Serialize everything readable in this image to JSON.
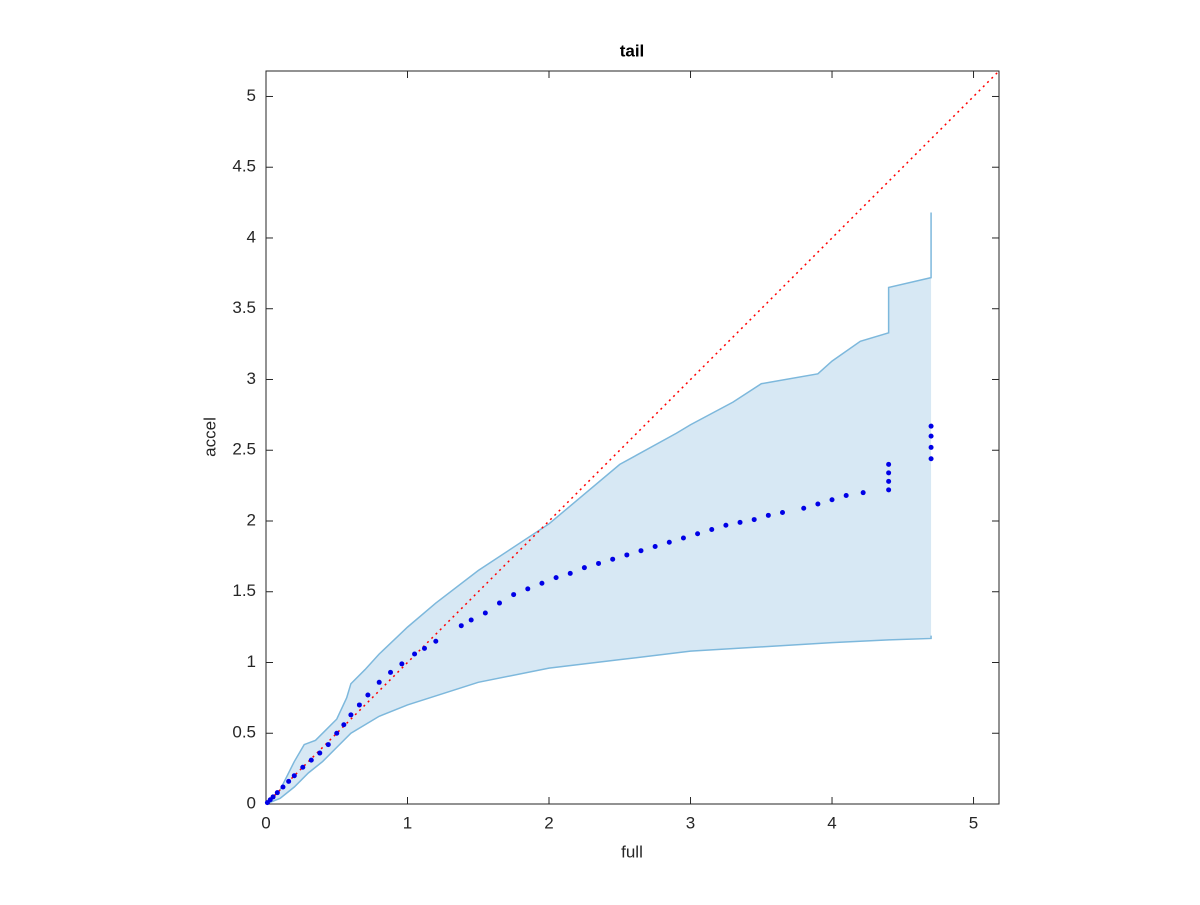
{
  "chart_data": {
    "type": "scatter",
    "title": "tail",
    "xlabel": "full",
    "ylabel": "accel",
    "xlim": [
      0,
      5.18
    ],
    "ylim": [
      0,
      5.18
    ],
    "xticks": [
      0,
      1,
      2,
      3,
      4,
      5
    ],
    "yticks": [
      0,
      0.5,
      1,
      1.5,
      2,
      2.5,
      3,
      3.5,
      4,
      4.5,
      5
    ],
    "reference_line_color": "#ff0000",
    "band": {
      "color": "#d7e8f4",
      "edge_color": "#7db8dc",
      "upper": {
        "x": [
          0,
          0.1,
          0.2,
          0.27,
          0.35,
          0.42,
          0.5,
          0.57,
          0.6,
          0.7,
          0.8,
          1,
          1.2,
          1.5,
          2,
          2.5,
          2.9,
          3,
          3.3,
          3.5,
          3.9,
          4.0,
          4.2,
          4.4,
          4.4,
          4.7,
          4.7
        ],
        "values": [
          0,
          0.1,
          0.3,
          0.42,
          0.45,
          0.52,
          0.6,
          0.75,
          0.85,
          0.95,
          1.06,
          1.25,
          1.42,
          1.65,
          1.98,
          2.4,
          2.62,
          2.68,
          2.84,
          2.97,
          3.04,
          3.13,
          3.27,
          3.33,
          3.65,
          3.72,
          4.18
        ]
      },
      "lower": {
        "x": [
          0,
          0.1,
          0.2,
          0.3,
          0.4,
          0.5,
          0.6,
          0.8,
          1,
          1.5,
          2,
          2.5,
          3,
          3.5,
          4,
          4.4,
          4.7,
          4.7
        ],
        "values": [
          0,
          0.04,
          0.12,
          0.22,
          0.3,
          0.4,
          0.5,
          0.62,
          0.7,
          0.86,
          0.96,
          1.02,
          1.08,
          1.11,
          1.14,
          1.16,
          1.17,
          1.19
        ]
      }
    },
    "series": [
      {
        "name": "points",
        "color": "#0000e6",
        "x": [
          0.01,
          0.03,
          0.05,
          0.08,
          0.12,
          0.16,
          0.2,
          0.26,
          0.32,
          0.38,
          0.44,
          0.5,
          0.55,
          0.6,
          0.66,
          0.72,
          0.8,
          0.88,
          0.96,
          1.05,
          1.12,
          1.2,
          1.38,
          1.45,
          1.55,
          1.65,
          1.75,
          1.85,
          1.95,
          2.05,
          2.15,
          2.25,
          2.35,
          2.45,
          2.55,
          2.65,
          2.75,
          2.85,
          2.95,
          3.05,
          3.15,
          3.25,
          3.35,
          3.45,
          3.55,
          3.65,
          3.8,
          3.9,
          4.0,
          4.1,
          4.22,
          4.4,
          4.4,
          4.4,
          4.4,
          4.7,
          4.7,
          4.7,
          4.7
        ],
        "values": [
          0.01,
          0.03,
          0.05,
          0.08,
          0.12,
          0.16,
          0.2,
          0.26,
          0.31,
          0.36,
          0.42,
          0.5,
          0.56,
          0.63,
          0.7,
          0.77,
          0.86,
          0.93,
          0.99,
          1.06,
          1.1,
          1.15,
          1.26,
          1.3,
          1.35,
          1.42,
          1.48,
          1.52,
          1.56,
          1.6,
          1.63,
          1.67,
          1.7,
          1.73,
          1.76,
          1.79,
          1.82,
          1.85,
          1.88,
          1.91,
          1.94,
          1.97,
          1.99,
          2.01,
          2.04,
          2.06,
          2.09,
          2.12,
          2.15,
          2.18,
          2.2,
          2.22,
          2.28,
          2.34,
          2.4,
          2.44,
          2.52,
          2.6,
          2.67
        ]
      }
    ]
  }
}
